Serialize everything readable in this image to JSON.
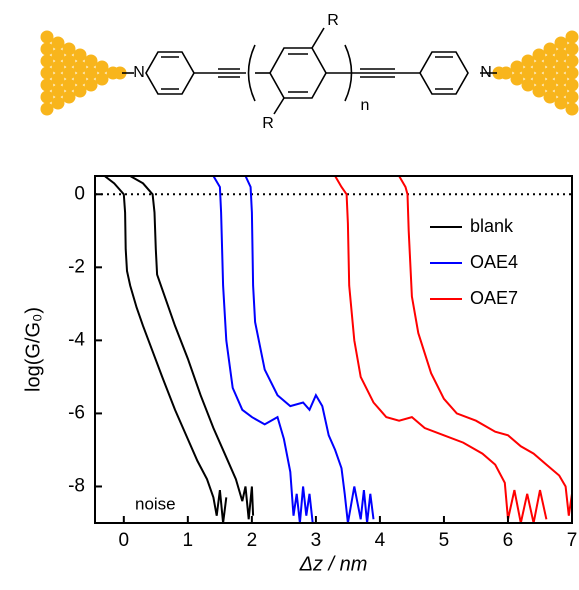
{
  "diagram": {
    "atoms": [
      "N",
      "N"
    ],
    "substituents": [
      "R",
      "R"
    ],
    "repeat": "n"
  },
  "chart_data": {
    "type": "line",
    "xlabel": "Δz / nm",
    "ylabel": "log(G/G₀)",
    "xlim": [
      -0.45,
      7
    ],
    "ylim": [
      -9,
      0.5
    ],
    "xticks": [
      0,
      1,
      2,
      3,
      4,
      5,
      6,
      7
    ],
    "yticks": [
      0,
      -2,
      -4,
      -6,
      -8
    ],
    "hline": 0,
    "legend": "upper right",
    "annotation": "noise",
    "series": [
      {
        "name": "blank",
        "color": "#000000",
        "traces": [
          {
            "x": [
              -0.3,
              -0.15,
              -0.05,
              0.0,
              0.02,
              0.03,
              0.05,
              0.1,
              0.2,
              0.3,
              0.45,
              0.6,
              0.8,
              1.0,
              1.15,
              1.3,
              1.4,
              1.45,
              1.5,
              1.55,
              1.6
            ],
            "values": [
              0.5,
              0.3,
              0.1,
              0.0,
              -0.5,
              -1.5,
              -2.1,
              -2.5,
              -3.1,
              -3.6,
              -4.3,
              -5.0,
              -5.9,
              -6.7,
              -7.3,
              -7.8,
              -8.3,
              -8.8,
              -8.1,
              -9.0,
              -8.3
            ]
          },
          {
            "x": [
              0.1,
              0.3,
              0.45,
              0.48,
              0.5,
              0.52,
              0.6,
              0.8,
              1.0,
              1.2,
              1.4,
              1.6,
              1.75,
              1.85,
              1.9,
              1.95,
              2.0,
              2.02
            ],
            "values": [
              0.5,
              0.3,
              0.0,
              -0.5,
              -1.5,
              -2.2,
              -2.6,
              -3.6,
              -4.5,
              -5.5,
              -6.4,
              -7.2,
              -7.8,
              -8.4,
              -8.0,
              -8.9,
              -8.0,
              -8.8
            ]
          }
        ]
      },
      {
        "name": "OAE4",
        "color": "#0000ff",
        "traces": [
          {
            "x": [
              1.4,
              1.5,
              1.52,
              1.55,
              1.6,
              1.7,
              1.85,
              2.0,
              2.2,
              2.4,
              2.5,
              2.6,
              2.65,
              2.7,
              2.75,
              2.8,
              2.85,
              2.9,
              2.95
            ],
            "values": [
              0.5,
              0.2,
              -0.5,
              -2.5,
              -4,
              -5.3,
              -5.9,
              -6.1,
              -6.3,
              -6.1,
              -6.7,
              -7.6,
              -8.8,
              -8.2,
              -9.0,
              -8.0,
              -8.8,
              -8.2,
              -9.0
            ]
          },
          {
            "x": [
              1.9,
              1.98,
              2.0,
              2.02,
              2.05,
              2.2,
              2.4,
              2.6,
              2.8,
              2.9,
              3.0,
              3.1,
              3.2,
              3.3,
              3.4,
              3.45,
              3.5,
              3.6,
              3.7,
              3.75,
              3.8,
              3.85,
              3.9
            ],
            "values": [
              0.5,
              0.2,
              -0.5,
              -2.5,
              -3.5,
              -4.8,
              -5.5,
              -5.8,
              -5.7,
              -5.9,
              -5.5,
              -5.8,
              -6.6,
              -7.0,
              -7.5,
              -8.2,
              -9.0,
              -8.0,
              -8.9,
              -8.1,
              -9.0,
              -8.2,
              -8.9
            ]
          }
        ]
      },
      {
        "name": "OAE7",
        "color": "#ff0000",
        "traces": [
          {
            "x": [
              3.3,
              3.4,
              3.48,
              3.5,
              3.52,
              3.6,
              3.7,
              3.9,
              4.1,
              4.3,
              4.5,
              4.7,
              5.0,
              5.3,
              5.6,
              5.8,
              5.95,
              6.0,
              6.1,
              6.2,
              6.3,
              6.4,
              6.5,
              6.6
            ],
            "values": [
              0.5,
              0.2,
              0.0,
              -0.8,
              -2.5,
              -4,
              -5,
              -5.7,
              -6.1,
              -6.2,
              -6.1,
              -6.4,
              -6.6,
              -6.8,
              -7.1,
              -7.4,
              -7.9,
              -8.9,
              -8.1,
              -9.0,
              -8.2,
              -9.0,
              -8.1,
              -8.9
            ]
          },
          {
            "x": [
              4.3,
              4.4,
              4.43,
              4.45,
              4.5,
              4.6,
              4.8,
              5.0,
              5.2,
              5.5,
              5.8,
              6.0,
              6.2,
              6.4,
              6.6,
              6.8,
              6.9,
              6.95,
              7.0
            ],
            "values": [
              0.5,
              0.2,
              0,
              -1,
              -2.8,
              -3.8,
              -4.9,
              -5.6,
              -6.0,
              -6.2,
              -6.5,
              -6.6,
              -6.9,
              -7.1,
              -7.4,
              -7.7,
              -8.0,
              -8.8,
              -8.2
            ]
          }
        ]
      }
    ]
  }
}
